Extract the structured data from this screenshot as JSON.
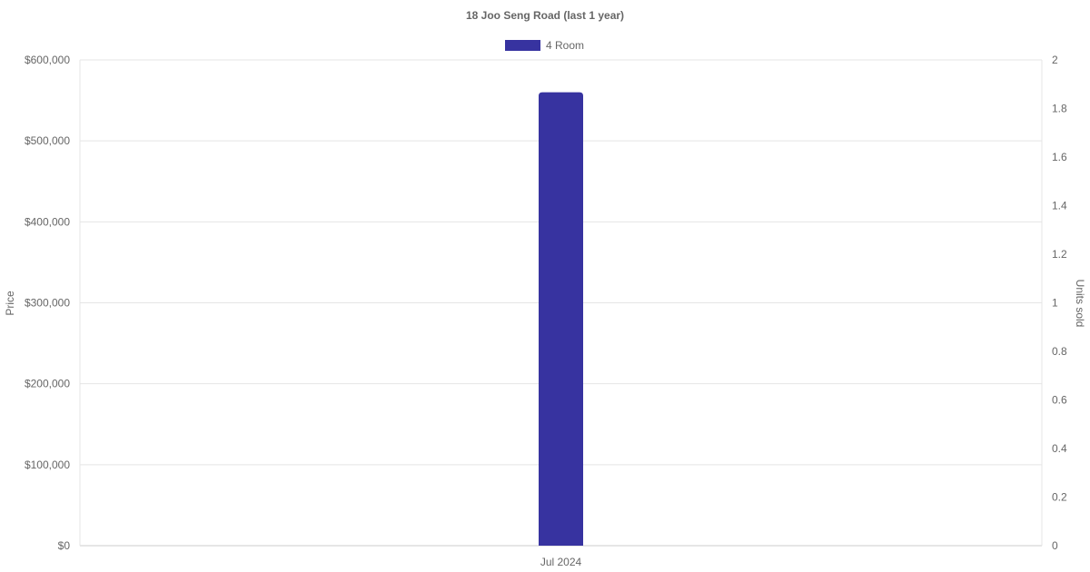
{
  "chart_data": {
    "type": "bar",
    "title": "18 Joo Seng Road (last 1 year)",
    "categories": [
      "Jul 2024"
    ],
    "series": [
      {
        "name": "4 Room",
        "values": [
          560000
        ],
        "color": "#3733a0",
        "axis": "left"
      }
    ],
    "ylabel": "Price",
    "y2label": "Units sold",
    "ylim": [
      0,
      600000
    ],
    "y2lim": [
      0,
      2
    ],
    "yticks": [
      "$0",
      "$100,000",
      "$200,000",
      "$300,000",
      "$400,000",
      "$500,000",
      "$600,000"
    ],
    "y2ticks": [
      "0",
      "0.2",
      "0.4",
      "0.6",
      "0.8",
      "1",
      "1.2",
      "1.4",
      "1.6",
      "1.8",
      "2"
    ],
    "grid": true,
    "legend": "top"
  }
}
